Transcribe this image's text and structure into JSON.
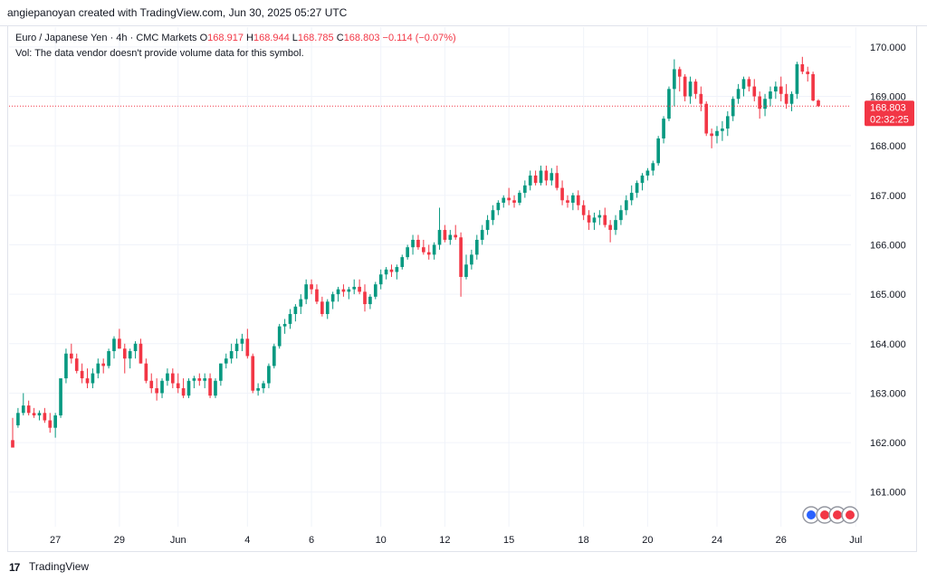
{
  "header": {
    "credit": "angiepanoyan created with TradingView.com, Jun 30, 2025 05:27 UTC"
  },
  "legend": {
    "symbol": "Euro / Japanese Yen · 4h · CMC Markets",
    "o_label": "O",
    "o_value": "168.917",
    "h_label": "H",
    "h_value": "168.944",
    "l_label": "L",
    "l_value": "168.785",
    "c_label": "C",
    "c_value": "168.803",
    "change": "−0.114 (−0.07%)",
    "vol_note": "Vol: The data vendor doesn't provide volume data for this symbol."
  },
  "price_badge": {
    "price": "168.803",
    "countdown": "02:32:25"
  },
  "footer": {
    "brand": "TradingView",
    "logo_glyph": "17"
  },
  "colors": {
    "up": "#089981",
    "down": "#f23645",
    "grid": "#f0f3fa",
    "text": "#131722"
  },
  "chart_data": {
    "type": "candlestick",
    "interval": "4h",
    "ylim": [
      160.3,
      170.4
    ],
    "y_ticks": [
      "170.000",
      "169.000",
      "168.000",
      "167.000",
      "166.000",
      "165.000",
      "164.000",
      "163.000",
      "162.000",
      "161.000"
    ],
    "y_tick_values": [
      170,
      169,
      168,
      167,
      166,
      165,
      164,
      163,
      162,
      161
    ],
    "x_ticks": [
      {
        "label": "27",
        "index": 8
      },
      {
        "label": "29",
        "index": 20
      },
      {
        "label": "Jun",
        "index": 31
      },
      {
        "label": "4",
        "index": 44
      },
      {
        "label": "6",
        "index": 56
      },
      {
        "label": "10",
        "index": 69
      },
      {
        "label": "12",
        "index": 81
      },
      {
        "label": "15",
        "index": 93
      },
      {
        "label": "18",
        "index": 107
      },
      {
        "label": "20",
        "index": 119
      },
      {
        "label": "24",
        "index": 132
      },
      {
        "label": "26",
        "index": 144
      },
      {
        "label": "Jul",
        "index": 158
      }
    ],
    "last_price": 168.803,
    "candles": [
      [
        162.05,
        162.5,
        161.9,
        161.9
      ],
      [
        162.35,
        162.7,
        162.3,
        162.6
      ],
      [
        162.6,
        163.0,
        162.55,
        162.75
      ],
      [
        162.75,
        162.85,
        162.55,
        162.6
      ],
      [
        162.6,
        162.7,
        162.5,
        162.55
      ],
      [
        162.55,
        162.65,
        162.45,
        162.6
      ],
      [
        162.6,
        162.7,
        162.4,
        162.45
      ],
      [
        162.45,
        162.6,
        162.2,
        162.3
      ],
      [
        162.3,
        162.6,
        162.1,
        162.55
      ],
      [
        162.55,
        163.3,
        162.5,
        163.3
      ],
      [
        163.3,
        163.9,
        163.2,
        163.8
      ],
      [
        163.8,
        164.0,
        163.6,
        163.7
      ],
      [
        163.7,
        163.8,
        163.4,
        163.45
      ],
      [
        163.45,
        163.6,
        163.2,
        163.3
      ],
      [
        163.3,
        163.5,
        163.1,
        163.2
      ],
      [
        163.2,
        163.5,
        163.1,
        163.4
      ],
      [
        163.4,
        163.7,
        163.3,
        163.6
      ],
      [
        163.6,
        163.7,
        163.4,
        163.55
      ],
      [
        163.55,
        163.9,
        163.5,
        163.85
      ],
      [
        163.85,
        164.15,
        163.7,
        164.1
      ],
      [
        164.1,
        164.3,
        163.9,
        163.9
      ],
      [
        163.9,
        164.0,
        163.4,
        163.7
      ],
      [
        163.7,
        163.9,
        163.5,
        163.85
      ],
      [
        163.85,
        164.05,
        163.7,
        164.0
      ],
      [
        164.0,
        164.1,
        163.6,
        163.6
      ],
      [
        163.6,
        163.7,
        163.2,
        163.25
      ],
      [
        163.25,
        163.4,
        163.0,
        163.1
      ],
      [
        163.1,
        163.3,
        162.85,
        163.0
      ],
      [
        163.0,
        163.3,
        162.9,
        163.25
      ],
      [
        163.25,
        163.5,
        163.15,
        163.4
      ],
      [
        163.4,
        163.5,
        163.1,
        163.2
      ],
      [
        163.2,
        163.4,
        163.0,
        163.1
      ],
      [
        163.1,
        163.3,
        162.9,
        162.95
      ],
      [
        162.95,
        163.3,
        162.9,
        163.25
      ],
      [
        163.25,
        163.35,
        163.1,
        163.3
      ],
      [
        163.3,
        163.4,
        163.15,
        163.25
      ],
      [
        163.25,
        163.4,
        163.1,
        163.3
      ],
      [
        163.3,
        163.4,
        162.9,
        162.95
      ],
      [
        162.95,
        163.3,
        162.9,
        163.25
      ],
      [
        163.25,
        163.6,
        163.15,
        163.6
      ],
      [
        163.6,
        163.8,
        163.5,
        163.7
      ],
      [
        163.7,
        164.0,
        163.6,
        163.85
      ],
      [
        163.85,
        164.1,
        163.7,
        164.0
      ],
      [
        164.0,
        164.2,
        163.85,
        164.1
      ],
      [
        164.1,
        164.3,
        163.7,
        163.75
      ],
      [
        163.75,
        163.8,
        163.0,
        163.05
      ],
      [
        163.05,
        163.2,
        162.95,
        163.1
      ],
      [
        163.1,
        163.25,
        163.0,
        163.2
      ],
      [
        163.2,
        163.6,
        163.1,
        163.55
      ],
      [
        163.55,
        164.0,
        163.5,
        163.95
      ],
      [
        163.95,
        164.4,
        163.9,
        164.35
      ],
      [
        164.35,
        164.5,
        164.2,
        164.4
      ],
      [
        164.4,
        164.7,
        164.3,
        164.6
      ],
      [
        164.6,
        164.8,
        164.45,
        164.75
      ],
      [
        164.75,
        165.0,
        164.6,
        164.9
      ],
      [
        164.9,
        165.3,
        164.8,
        165.2
      ],
      [
        165.2,
        165.3,
        165.0,
        165.1
      ],
      [
        165.1,
        165.2,
        164.8,
        164.85
      ],
      [
        164.85,
        164.95,
        164.55,
        164.6
      ],
      [
        164.6,
        164.9,
        164.5,
        164.85
      ],
      [
        164.85,
        165.05,
        164.7,
        165.0
      ],
      [
        165.0,
        165.15,
        164.85,
        165.1
      ],
      [
        165.1,
        165.2,
        164.95,
        165.05
      ],
      [
        165.05,
        165.15,
        164.9,
        165.1
      ],
      [
        165.1,
        165.3,
        165.0,
        165.15
      ],
      [
        165.15,
        165.3,
        165.0,
        165.05
      ],
      [
        165.05,
        165.2,
        164.65,
        164.8
      ],
      [
        164.8,
        165.0,
        164.7,
        164.95
      ],
      [
        164.95,
        165.25,
        164.9,
        165.2
      ],
      [
        165.2,
        165.5,
        165.1,
        165.4
      ],
      [
        165.4,
        165.55,
        165.3,
        165.5
      ],
      [
        165.5,
        165.6,
        165.35,
        165.45
      ],
      [
        165.45,
        165.6,
        165.3,
        165.55
      ],
      [
        165.55,
        165.8,
        165.5,
        165.75
      ],
      [
        165.75,
        166.0,
        165.7,
        165.95
      ],
      [
        165.95,
        166.2,
        165.8,
        166.1
      ],
      [
        166.1,
        166.2,
        165.9,
        165.95
      ],
      [
        165.95,
        166.1,
        165.8,
        165.85
      ],
      [
        165.85,
        166.0,
        165.7,
        165.8
      ],
      [
        165.8,
        166.05,
        165.7,
        166.0
      ],
      [
        166.0,
        166.75,
        165.9,
        166.3
      ],
      [
        166.3,
        166.4,
        166.05,
        166.1
      ],
      [
        166.1,
        166.3,
        166.0,
        166.2
      ],
      [
        166.2,
        166.4,
        166.1,
        166.15
      ],
      [
        166.15,
        166.25,
        164.95,
        165.35
      ],
      [
        165.35,
        165.8,
        165.3,
        165.6
      ],
      [
        165.6,
        165.9,
        165.5,
        165.8
      ],
      [
        165.8,
        166.2,
        165.7,
        166.1
      ],
      [
        166.1,
        166.4,
        166.0,
        166.3
      ],
      [
        166.3,
        166.6,
        166.2,
        166.5
      ],
      [
        166.5,
        166.8,
        166.4,
        166.7
      ],
      [
        166.7,
        166.9,
        166.6,
        166.85
      ],
      [
        166.85,
        167.0,
        166.75,
        166.95
      ],
      [
        166.95,
        167.15,
        166.8,
        166.9
      ],
      [
        166.9,
        167.0,
        166.75,
        166.85
      ],
      [
        166.85,
        167.1,
        166.8,
        167.05
      ],
      [
        167.05,
        167.3,
        166.95,
        167.2
      ],
      [
        167.2,
        167.5,
        167.1,
        167.4
      ],
      [
        167.4,
        167.5,
        167.2,
        167.25
      ],
      [
        167.25,
        167.6,
        167.2,
        167.5
      ],
      [
        167.5,
        167.6,
        167.2,
        167.3
      ],
      [
        167.3,
        167.55,
        167.2,
        167.45
      ],
      [
        167.45,
        167.6,
        167.1,
        167.15
      ],
      [
        167.15,
        167.3,
        166.8,
        166.9
      ],
      [
        166.9,
        167.0,
        166.75,
        166.85
      ],
      [
        166.85,
        167.05,
        166.7,
        167.0
      ],
      [
        167.0,
        167.1,
        166.7,
        166.8
      ],
      [
        166.8,
        166.9,
        166.5,
        166.6
      ],
      [
        166.6,
        166.7,
        166.3,
        166.45
      ],
      [
        166.45,
        166.65,
        166.3,
        166.55
      ],
      [
        166.55,
        166.7,
        166.4,
        166.6
      ],
      [
        166.6,
        166.75,
        166.35,
        166.4
      ],
      [
        166.4,
        166.5,
        166.05,
        166.3
      ],
      [
        166.3,
        166.6,
        166.2,
        166.5
      ],
      [
        166.5,
        166.8,
        166.4,
        166.7
      ],
      [
        166.7,
        167.0,
        166.6,
        166.9
      ],
      [
        166.9,
        167.2,
        166.8,
        167.05
      ],
      [
        167.05,
        167.3,
        166.95,
        167.25
      ],
      [
        167.25,
        167.45,
        167.1,
        167.4
      ],
      [
        167.4,
        167.55,
        167.3,
        167.5
      ],
      [
        167.5,
        167.7,
        167.4,
        167.65
      ],
      [
        167.65,
        168.2,
        167.6,
        168.15
      ],
      [
        168.15,
        168.6,
        168.05,
        168.55
      ],
      [
        168.55,
        169.2,
        168.5,
        169.15
      ],
      [
        169.15,
        169.75,
        168.8,
        169.55
      ],
      [
        169.55,
        169.6,
        169.1,
        169.4
      ],
      [
        169.4,
        169.45,
        168.9,
        169.0
      ],
      [
        169.0,
        169.4,
        168.85,
        169.3
      ],
      [
        169.3,
        169.35,
        168.95,
        169.05
      ],
      [
        169.05,
        169.2,
        168.7,
        168.85
      ],
      [
        168.85,
        168.9,
        168.2,
        168.25
      ],
      [
        168.25,
        168.35,
        167.95,
        168.2
      ],
      [
        168.2,
        168.4,
        168.05,
        168.3
      ],
      [
        168.3,
        168.5,
        168.1,
        168.35
      ],
      [
        168.35,
        168.7,
        168.2,
        168.6
      ],
      [
        168.6,
        169.0,
        168.5,
        168.95
      ],
      [
        168.95,
        169.25,
        168.85,
        169.15
      ],
      [
        169.15,
        169.4,
        169.0,
        169.35
      ],
      [
        169.35,
        169.4,
        169.1,
        169.2
      ],
      [
        169.2,
        169.35,
        168.9,
        169.0
      ],
      [
        169.0,
        169.1,
        168.55,
        168.75
      ],
      [
        168.75,
        169.05,
        168.6,
        168.95
      ],
      [
        168.95,
        169.2,
        168.8,
        169.1
      ],
      [
        169.1,
        169.3,
        168.95,
        169.2
      ],
      [
        169.2,
        169.4,
        168.9,
        169.05
      ],
      [
        169.05,
        169.25,
        168.75,
        168.85
      ],
      [
        168.85,
        169.1,
        168.7,
        169.05
      ],
      [
        169.05,
        169.7,
        168.95,
        169.65
      ],
      [
        169.65,
        169.8,
        169.45,
        169.5
      ],
      [
        169.5,
        169.6,
        169.3,
        169.45
      ],
      [
        169.45,
        169.5,
        168.9,
        168.917
      ],
      [
        168.917,
        168.944,
        168.785,
        168.803
      ]
    ]
  }
}
